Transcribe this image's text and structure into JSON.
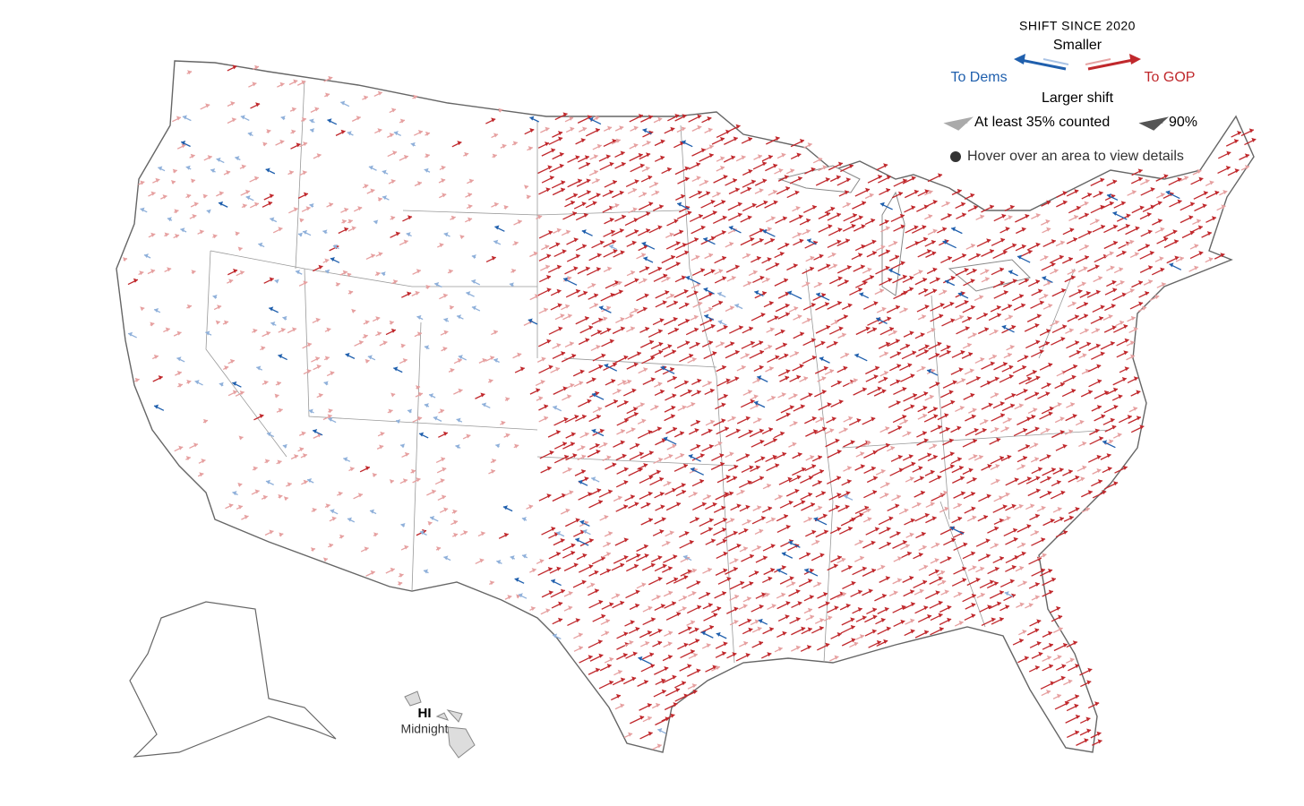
{
  "legend": {
    "title": "SHIFT SINCE 2020",
    "smaller": "Smaller",
    "to_dems": "To Dems",
    "to_gop": "To GOP",
    "larger": "Larger shift",
    "counted_35": "At least 35% counted",
    "counted_90": "90%"
  },
  "hint": "Hover over an area to view details",
  "hawaii": {
    "label": "HI",
    "status": "Midnight"
  }
}
